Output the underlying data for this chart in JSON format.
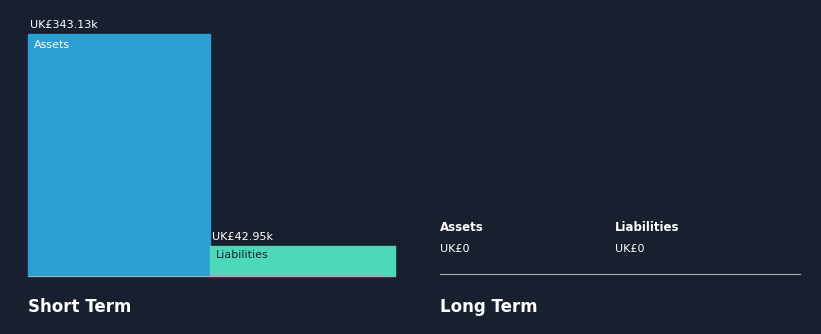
{
  "background_color": "#181f2e",
  "short_term": {
    "assets_value": 343130,
    "assets_label": "UK£343.13k",
    "assets_color": "#2b9ed4",
    "assets_text": "Assets",
    "liabilities_value": 42950,
    "liabilities_label": "UK£42.95k",
    "liabilities_color": "#4dd9b8",
    "liabilities_text": "Liabilities"
  },
  "long_term": {
    "assets_label": "Assets",
    "assets_value_label": "UK£0",
    "liabilities_label": "Liabilities",
    "liabilities_value_label": "UK£0"
  },
  "section_title_short": "Short Term",
  "section_title_long": "Long Term",
  "text_color": "#ffffff",
  "divider_color": "#555566",
  "label_fontsize": 8.5,
  "bar_label_fontsize": 8,
  "section_title_fontsize": 12,
  "value_label_fontsize": 8
}
